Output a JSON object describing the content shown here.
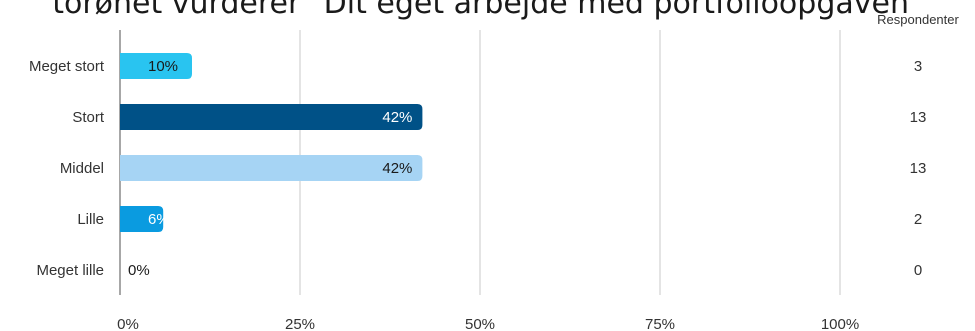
{
  "title": "torønet vurderer \"Dit eget arbejde med portfolioopgaven\"",
  "chart_data": {
    "type": "bar",
    "orientation": "horizontal",
    "title": "torønet vurderer \"Dit eget arbejde med portfolioopgaven\"",
    "categories": [
      "Meget stort",
      "Stort",
      "Middel",
      "Lille",
      "Meget lille"
    ],
    "values": [
      10,
      42,
      42,
      6,
      0
    ],
    "value_labels": [
      "10%",
      "42%",
      "42%",
      "6%",
      "0%"
    ],
    "respondents_header": "Respondenter",
    "respondents": [
      "3",
      "13",
      "13",
      "2",
      "0"
    ],
    "xlim": [
      0,
      100
    ],
    "x_ticks": [
      0,
      25,
      50,
      75,
      100
    ],
    "x_tick_labels": [
      "0%",
      "25%",
      "50%",
      "75%",
      "100%"
    ],
    "grid": "vertical",
    "colors": [
      "#29c4f0",
      "#005187",
      "#a6d4f4",
      "#0a9be0",
      "#29c4f0"
    ],
    "label_colors": [
      "#1a1a1a",
      "#ffffff",
      "#1a1a1a",
      "#ffffff",
      "#1a1a1a"
    ]
  }
}
